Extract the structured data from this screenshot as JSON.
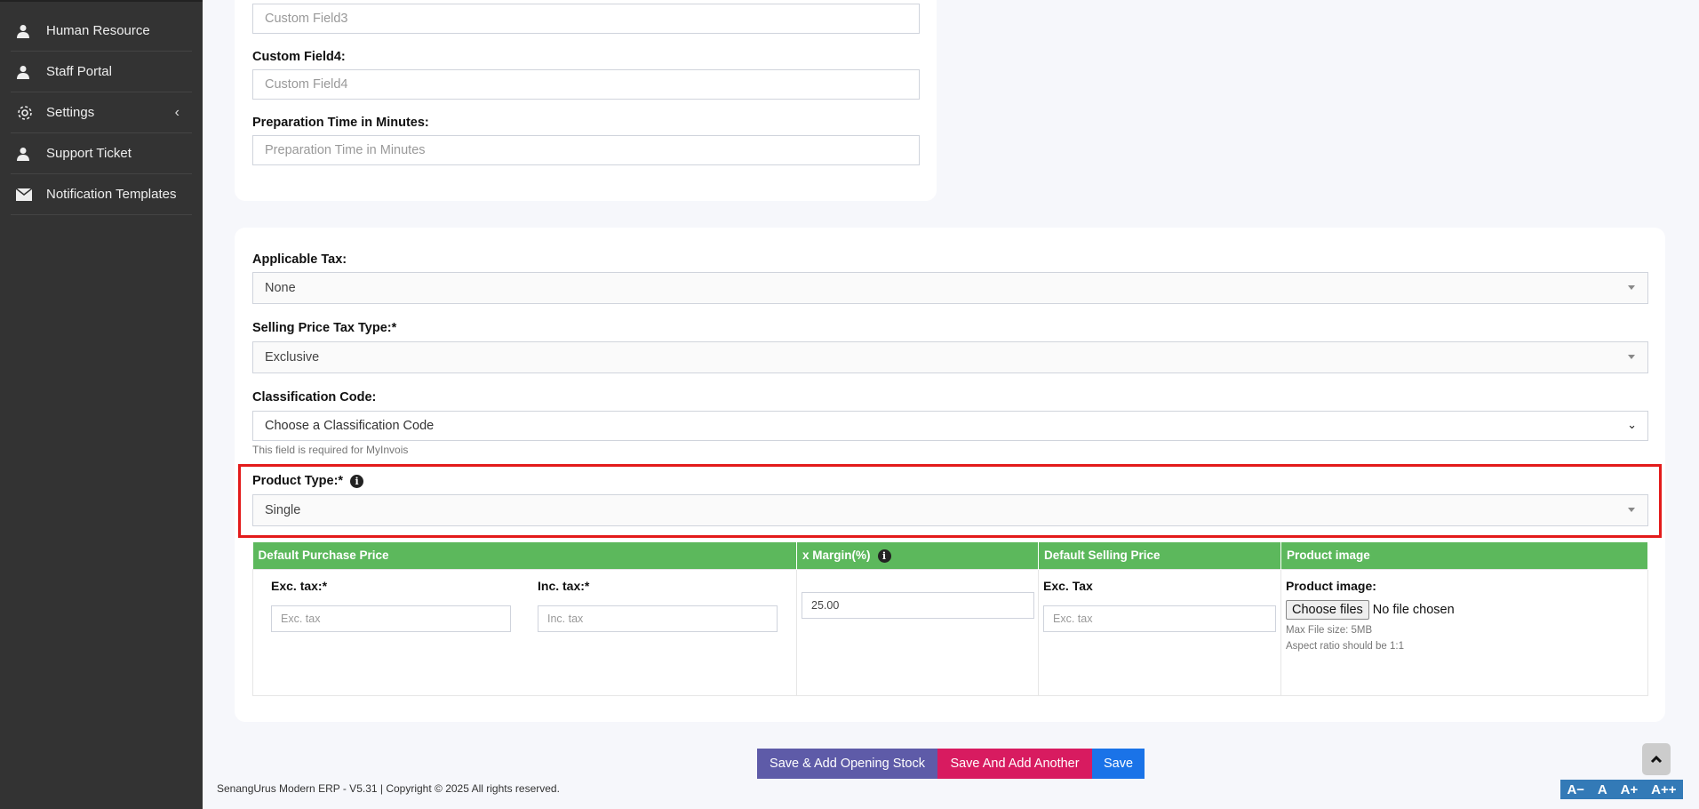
{
  "sidebar": {
    "items": [
      {
        "label": "Human Resource",
        "icon": "user-icon"
      },
      {
        "label": "Staff Portal",
        "icon": "user-icon"
      },
      {
        "label": "Settings",
        "icon": "gear-icon"
      },
      {
        "label": "Support Ticket",
        "icon": "user-icon"
      },
      {
        "label": "Notification Templates",
        "icon": "envelope-icon"
      }
    ]
  },
  "card1": {
    "custom_field3_placeholder": "Custom Field3",
    "custom_field4_label": "Custom Field4:",
    "custom_field4_placeholder": "Custom Field4",
    "prep_time_label": "Preparation Time in Minutes:",
    "prep_time_placeholder": "Preparation Time in Minutes"
  },
  "card2": {
    "applicable_tax_label": "Applicable Tax:",
    "applicable_tax_value": "None",
    "selling_tax_type_label": "Selling Price Tax Type:*",
    "selling_tax_type_value": "Exclusive",
    "classification_label": "Classification Code:",
    "classification_value": "Choose a Classification Code",
    "classification_help": "This field is required for MyInvois",
    "product_type_label": "Product Type:*",
    "product_type_value": "Single",
    "highlight_color": "#e31b1b"
  },
  "price_table": {
    "headers": [
      "Default Purchase Price",
      "x Margin(%)",
      "Default Selling Price",
      "Product image"
    ],
    "exc_tax_label": "Exc. tax:*",
    "exc_tax_placeholder": "Exc. tax",
    "inc_tax_label": "Inc. tax:*",
    "inc_tax_placeholder": "Inc. tax",
    "margin_value": "25.00",
    "selling_exc_label": "Exc. Tax",
    "selling_exc_placeholder": "Exc. tax",
    "image_label": "Product image:",
    "choose_files": "Choose files",
    "no_file": "No file chosen",
    "max_size": "Max File size: 5MB",
    "aspect": "Aspect ratio should be 1:1",
    "header_color": "#5cb85c"
  },
  "actions": {
    "opening_stock": "Save & Add Opening Stock",
    "add_another": "Save And Add Another",
    "save": "Save"
  },
  "footer": {
    "text": "SenangUrus Modern ERP - V5.31 | Copyright © 2025 All rights reserved."
  },
  "font_controls": [
    "A−",
    "A",
    "A+",
    "A++"
  ]
}
